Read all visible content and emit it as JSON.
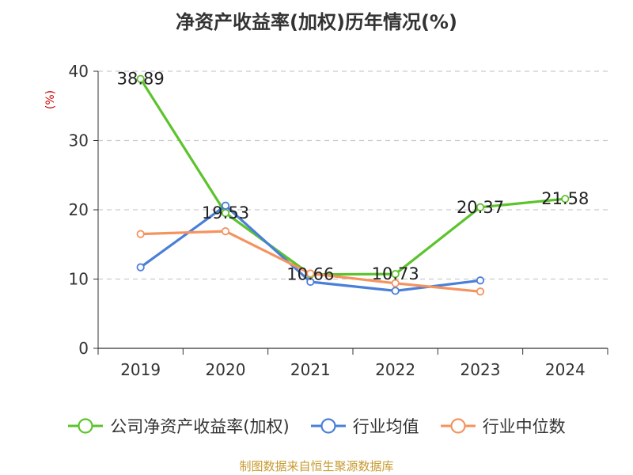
{
  "chart_data": {
    "type": "line",
    "title": "净资产收益率(加权)历年情况(%)",
    "ylabel": "(%)",
    "xlabel": "",
    "categories": [
      "2019",
      "2020",
      "2021",
      "2022",
      "2023",
      "2024"
    ],
    "ylim": [
      0,
      40
    ],
    "yticks": [
      0,
      10,
      20,
      30,
      40
    ],
    "grid": true,
    "legend_position": "bottom",
    "series": [
      {
        "name": "公司净资产收益率(加权)",
        "color": "#5cc32d",
        "values": [
          38.89,
          19.53,
          10.66,
          10.73,
          20.37,
          21.58
        ],
        "labels": [
          "38.89",
          "19.53",
          "10.66",
          "10.73",
          "20.37",
          "21.58"
        ]
      },
      {
        "name": "行业均值",
        "color": "#4a7fd8",
        "values": [
          11.7,
          20.6,
          9.6,
          8.3,
          9.8,
          null
        ]
      },
      {
        "name": "行业中位数",
        "color": "#f5935f",
        "values": [
          16.5,
          16.9,
          10.8,
          9.4,
          8.2,
          null
        ]
      }
    ]
  },
  "footer": {
    "source": "制图数据来自恒生聚源数据库"
  },
  "colors": {
    "ylabel": "#cc0000",
    "grid": "#cccccc",
    "axis": "#333333"
  }
}
